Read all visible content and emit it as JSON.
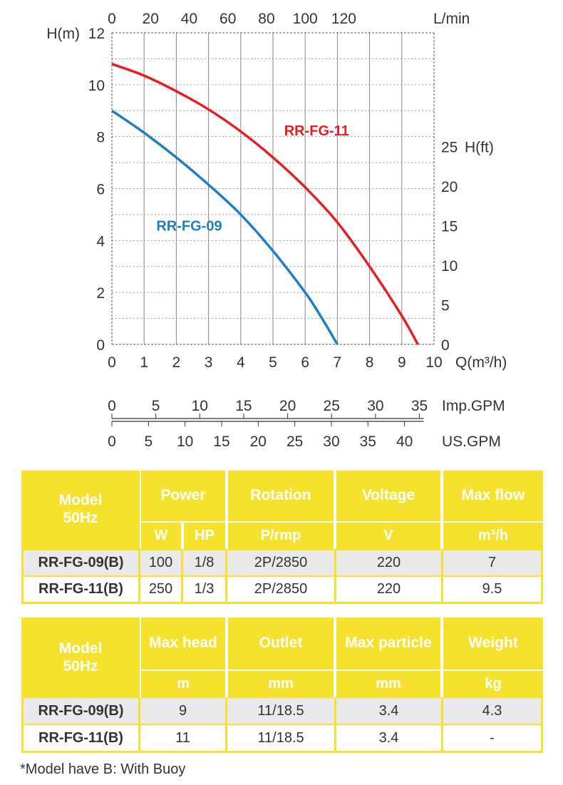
{
  "chart_data": {
    "type": "line",
    "title": "",
    "xlabel": "Q(m³/h)",
    "ylabel": "H(m)",
    "top_axis_label": "L/min",
    "right_axis_label": "H(ft)",
    "xlim": [
      0,
      10
    ],
    "ylim": [
      0,
      12
    ],
    "grid": true,
    "x_ticks": [
      "0",
      "1",
      "2",
      "3",
      "4",
      "5",
      "6",
      "7",
      "8",
      "9",
      "10"
    ],
    "y_ticks": [
      "0",
      "2",
      "4",
      "6",
      "8",
      "10",
      "12"
    ],
    "top_ticks": [
      "0",
      "20",
      "40",
      "60",
      "80",
      "100",
      "120"
    ],
    "right_ticks": [
      "0",
      "5",
      "10",
      "15",
      "20",
      "25"
    ],
    "imp_gpm_label": "Imp.GPM",
    "imp_gpm_ticks": [
      "0",
      "5",
      "10",
      "15",
      "20",
      "25",
      "30",
      "35"
    ],
    "us_gpm_label": "US.GPM",
    "us_gpm_ticks": [
      "0",
      "5",
      "10",
      "15",
      "20",
      "25",
      "30",
      "35",
      "40"
    ],
    "series": [
      {
        "name": "RR-FG-09",
        "color": "#1f7fbf",
        "x": [
          0,
          1,
          2,
          3,
          4,
          5,
          6,
          6.5,
          7
        ],
        "y": [
          9,
          8.15,
          7.2,
          6.15,
          5.0,
          3.6,
          2.0,
          1.05,
          0
        ]
      },
      {
        "name": "RR-FG-11",
        "color": "#e31e24",
        "x": [
          0,
          1,
          2,
          3,
          4,
          5,
          6,
          7,
          8,
          9,
          9.5
        ],
        "y": [
          10.8,
          10.35,
          9.75,
          9.05,
          8.2,
          7.2,
          6.05,
          4.7,
          3.0,
          1.1,
          0
        ]
      }
    ]
  },
  "table1": {
    "model_label_1": "Model",
    "model_label_2": "50Hz",
    "headers": [
      "Power",
      "Rotation",
      "Voltage",
      "Max flow"
    ],
    "units": [
      "W",
      "HP",
      "P/rmp",
      "V",
      "m³/h"
    ],
    "rows": [
      {
        "model": "RR-FG-09(B)",
        "w": "100",
        "hp": "1/8",
        "rot": "2P/2850",
        "v": "220",
        "flow": "7"
      },
      {
        "model": "RR-FG-11(B)",
        "w": "250",
        "hp": "1/3",
        "rot": "2P/2850",
        "v": "220",
        "flow": "9.5"
      }
    ]
  },
  "table2": {
    "model_label_1": "Model",
    "model_label_2": "50Hz",
    "headers": [
      "Max head",
      "Outlet",
      "Max particle",
      "Weight"
    ],
    "units": [
      "m",
      "mm",
      "mm",
      "kg"
    ],
    "rows": [
      {
        "model": "RR-FG-09(B)",
        "head": "9",
        "outlet": "11/18.5",
        "particle": "3.4",
        "weight": "4.3"
      },
      {
        "model": "RR-FG-11(B)",
        "head": "11",
        "outlet": "11/18.5",
        "particle": "3.4",
        "weight": "-"
      }
    ]
  },
  "footnote": "*Model have B: With Buoy"
}
